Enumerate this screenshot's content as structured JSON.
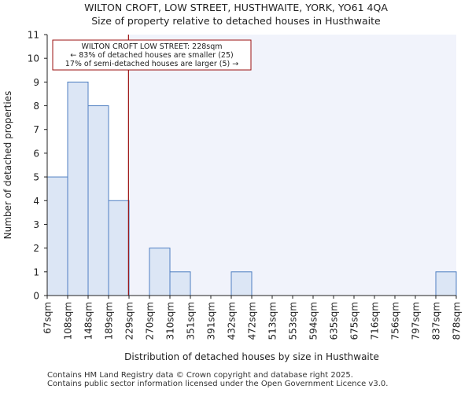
{
  "title_line1": "WILTON CROFT, LOW STREET, HUSTHWAITE, YORK, YO61 4QA",
  "title_line2": "Size of property relative to detached houses in Husthwaite",
  "footer_line1": "Contains HM Land Registry data © Crown copyright and database right 2025.",
  "footer_line2": "Contains public sector information licensed under the Open Government Licence v3.0.",
  "colors": {
    "bar_fill": "#dce6f5",
    "bar_stroke": "#4f7fc2",
    "marker_line": "#9b1111",
    "highlight_bg": "#f1f3fb",
    "annotation_border": "#9b1111"
  },
  "chart_data": {
    "type": "bar",
    "title": "Size of property relative to detached houses in Husthwaite",
    "xlabel": "Distribution of detached houses by size in Husthwaite",
    "ylabel": "Number of detached properties",
    "bin_edges": [
      67,
      108,
      148,
      189,
      229,
      270,
      310,
      351,
      391,
      432,
      472,
      513,
      553,
      594,
      635,
      675,
      716,
      756,
      797,
      837,
      878
    ],
    "tick_labels": [
      "67sqm",
      "108sqm",
      "148sqm",
      "189sqm",
      "229sqm",
      "270sqm",
      "310sqm",
      "351sqm",
      "391sqm",
      "432sqm",
      "472sqm",
      "513sqm",
      "553sqm",
      "594sqm",
      "635sqm",
      "675sqm",
      "716sqm",
      "756sqm",
      "797sqm",
      "837sqm",
      "878sqm"
    ],
    "values": [
      5,
      9,
      8,
      4,
      0,
      2,
      1,
      0,
      0,
      1,
      0,
      0,
      0,
      0,
      0,
      0,
      0,
      0,
      0,
      1
    ],
    "ylim": [
      0,
      11
    ],
    "yticks": [
      0,
      1,
      2,
      3,
      4,
      5,
      6,
      7,
      8,
      9,
      10,
      11
    ],
    "marker_value": 228,
    "annotation": [
      "WILTON CROFT LOW STREET: 228sqm",
      "← 83% of detached houses are smaller (25)",
      "17% of semi-detached houses are larger (5) →"
    ],
    "grid": false
  }
}
